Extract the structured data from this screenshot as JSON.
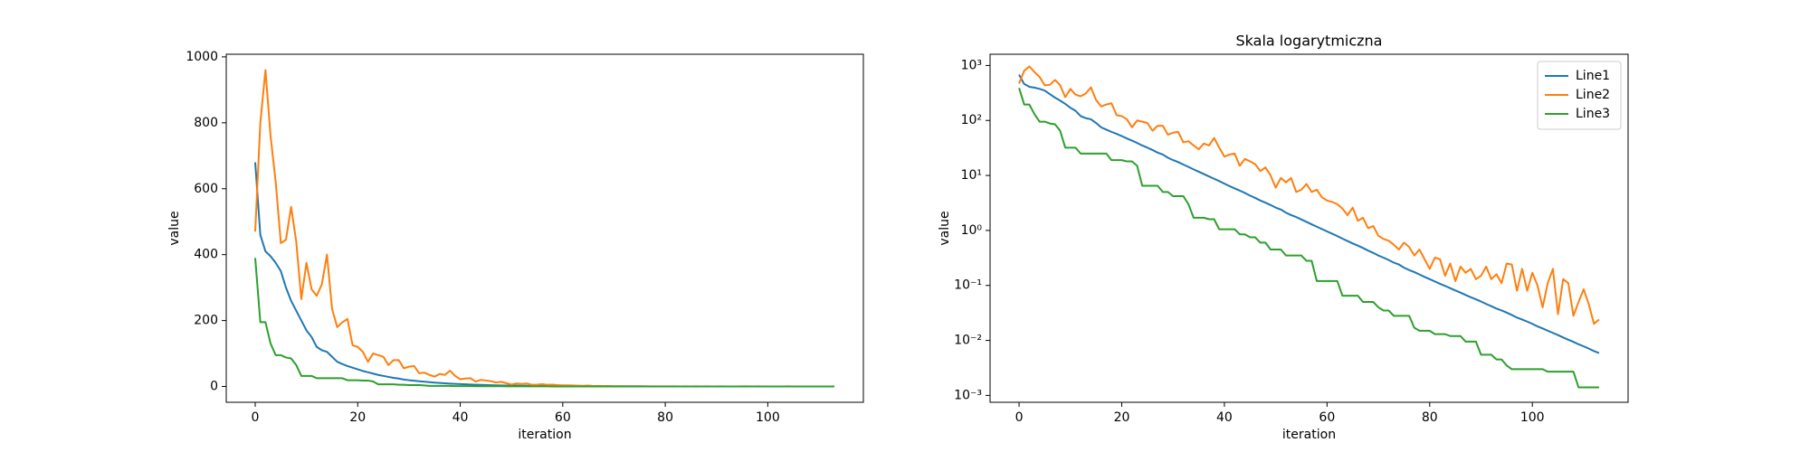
{
  "chart_data": [
    {
      "type": "line",
      "xlabel": "iteration",
      "ylabel": "value",
      "log_y": false,
      "legend": null,
      "xlim": [
        -5.65,
        118.65
      ],
      "xticks": [
        0,
        20,
        40,
        60,
        80,
        100
      ],
      "ylim": [
        -48,
        1008
      ],
      "yticks": [
        0,
        200,
        400,
        600,
        800,
        1000
      ],
      "x": [
        0,
        1,
        2,
        3,
        4,
        5,
        6,
        7,
        8,
        9,
        10,
        11,
        12,
        13,
        14,
        15,
        16,
        17,
        18,
        19,
        20,
        21,
        22,
        23,
        24,
        25,
        26,
        27,
        28,
        29,
        30,
        31,
        32,
        33,
        34,
        35,
        36,
        37,
        38,
        39,
        40,
        41,
        42,
        43,
        44,
        45,
        46,
        47,
        48,
        49,
        50,
        51,
        52,
        53,
        54,
        55,
        56,
        57,
        58,
        59,
        60,
        61,
        62,
        63,
        64,
        65,
        66,
        67,
        68,
        69,
        70,
        71,
        72,
        73,
        74,
        75,
        76,
        77,
        78,
        79,
        80,
        81,
        82,
        83,
        84,
        85,
        86,
        87,
        88,
        89,
        90,
        91,
        92,
        93,
        94,
        95,
        96,
        97,
        98,
        99,
        100,
        101,
        102,
        103,
        104,
        105,
        106,
        107,
        108,
        109,
        110,
        111,
        112,
        113
      ],
      "series": [
        {
          "name": "Line1",
          "color": "#1f77b4",
          "values": [
            680,
            460,
            410,
            395,
            375,
            350,
            300,
            260,
            230,
            200,
            170,
            150,
            120,
            110,
            105,
            90,
            75,
            68,
            62,
            57,
            52,
            47,
            43,
            39,
            35,
            32,
            29,
            26,
            24,
            21,
            19,
            17.5,
            15.8,
            14.3,
            12.9,
            11.7,
            10.6,
            9.6,
            8.7,
            7.9,
            7.1,
            6.4,
            5.8,
            5.3,
            4.8,
            4.3,
            3.9,
            3.5,
            3.2,
            2.9,
            2.6,
            2.4,
            2.1,
            1.9,
            1.75,
            1.58,
            1.43,
            1.29,
            1.17,
            1.06,
            0.96,
            0.87,
            0.79,
            0.71,
            0.64,
            0.58,
            0.53,
            0.48,
            0.43,
            0.39,
            0.35,
            0.32,
            0.29,
            0.26,
            0.24,
            0.21,
            0.19,
            0.175,
            0.158,
            0.143,
            0.13,
            0.118,
            0.107,
            0.098,
            0.089,
            0.081,
            0.074,
            0.067,
            0.061,
            0.056,
            0.051,
            0.046,
            0.042,
            0.038,
            0.035,
            0.032,
            0.029,
            0.026,
            0.024,
            0.022,
            0.02,
            0.018,
            0.0165,
            0.015,
            0.0137,
            0.0125,
            0.0113,
            0.0103,
            0.0094,
            0.0085,
            0.0078,
            0.0071,
            0.0064,
            0.0059
          ]
        },
        {
          "name": "Line2",
          "color": "#ff7f0e",
          "values": [
            470,
            800,
            960,
            760,
            620,
            435,
            445,
            545,
            440,
            265,
            375,
            295,
            275,
            310,
            400,
            235,
            180,
            195,
            205,
            125,
            120,
            105,
            75,
            100,
            95,
            90,
            65,
            80,
            80,
            55,
            60,
            62,
            40,
            42,
            35,
            30,
            38,
            35,
            48,
            32,
            22,
            24,
            25,
            15,
            20,
            18,
            16,
            12,
            14,
            10,
            6,
            9,
            7.5,
            9,
            5,
            5.5,
            7,
            5,
            5.5,
            4,
            3.5,
            3.3,
            3,
            2.5,
            1.9,
            2.6,
            1.5,
            1.7,
            1.1,
            1.2,
            0.8,
            0.7,
            0.65,
            0.55,
            0.45,
            0.6,
            0.5,
            0.35,
            0.45,
            0.3,
            0.2,
            0.32,
            0.3,
            0.15,
            0.25,
            0.12,
            0.22,
            0.17,
            0.2,
            0.13,
            0.15,
            0.22,
            0.13,
            0.16,
            0.11,
            0.25,
            0.24,
            0.08,
            0.2,
            0.08,
            0.17,
            0.1,
            0.04,
            0.11,
            0.2,
            0.03,
            0.13,
            0.11,
            0.028,
            0.05,
            0.085,
            0.045,
            0.02,
            0.024
          ]
        },
        {
          "name": "Line3",
          "color": "#2ca02c",
          "values": [
            390,
            195,
            195,
            130,
            95,
            95,
            88,
            85,
            65,
            32,
            32,
            32,
            25,
            25,
            25,
            25,
            25,
            25,
            19,
            19,
            19,
            18,
            18,
            15,
            6.5,
            6.5,
            6.5,
            6.5,
            5,
            5,
            4.2,
            4.2,
            4.2,
            3,
            1.7,
            1.7,
            1.7,
            1.6,
            1.6,
            1.05,
            1.05,
            1.05,
            1.05,
            0.85,
            0.85,
            0.75,
            0.75,
            0.6,
            0.6,
            0.45,
            0.45,
            0.45,
            0.35,
            0.35,
            0.35,
            0.35,
            0.28,
            0.28,
            0.12,
            0.12,
            0.12,
            0.12,
            0.12,
            0.065,
            0.065,
            0.065,
            0.065,
            0.05,
            0.05,
            0.05,
            0.04,
            0.035,
            0.035,
            0.028,
            0.028,
            0.028,
            0.028,
            0.017,
            0.015,
            0.015,
            0.015,
            0.013,
            0.013,
            0.013,
            0.012,
            0.012,
            0.012,
            0.0095,
            0.0095,
            0.0095,
            0.0055,
            0.0055,
            0.0055,
            0.0045,
            0.0045,
            0.0035,
            0.003,
            0.003,
            0.003,
            0.003,
            0.003,
            0.003,
            0.003,
            0.0027,
            0.0027,
            0.0027,
            0.0027,
            0.0027,
            0.0027,
            0.0014,
            0.0014,
            0.0014,
            0.0014,
            0.0014
          ]
        }
      ]
    },
    {
      "type": "line",
      "title": "Skala logarytmiczna",
      "xlabel": "iteration",
      "ylabel": "value",
      "log_y": true,
      "legend": "upper right",
      "xlim": [
        -5.65,
        118.65
      ],
      "xticks": [
        0,
        20,
        40,
        60,
        80,
        100
      ],
      "ylim": [
        0.00075,
        1600
      ],
      "yticks": [
        {
          "value": 0.001,
          "label": "10⁻³"
        },
        {
          "value": 0.01,
          "label": "10⁻²"
        },
        {
          "value": 0.1,
          "label": "10⁻¹"
        },
        {
          "value": 1,
          "label": "10⁰"
        },
        {
          "value": 10,
          "label": "10¹"
        },
        {
          "value": 100,
          "label": "10²"
        },
        {
          "value": 1000,
          "label": "10³"
        }
      ],
      "x": [
        0,
        1,
        2,
        3,
        4,
        5,
        6,
        7,
        8,
        9,
        10,
        11,
        12,
        13,
        14,
        15,
        16,
        17,
        18,
        19,
        20,
        21,
        22,
        23,
        24,
        25,
        26,
        27,
        28,
        29,
        30,
        31,
        32,
        33,
        34,
        35,
        36,
        37,
        38,
        39,
        40,
        41,
        42,
        43,
        44,
        45,
        46,
        47,
        48,
        49,
        50,
        51,
        52,
        53,
        54,
        55,
        56,
        57,
        58,
        59,
        60,
        61,
        62,
        63,
        64,
        65,
        66,
        67,
        68,
        69,
        70,
        71,
        72,
        73,
        74,
        75,
        76,
        77,
        78,
        79,
        80,
        81,
        82,
        83,
        84,
        85,
        86,
        87,
        88,
        89,
        90,
        91,
        92,
        93,
        94,
        95,
        96,
        97,
        98,
        99,
        100,
        101,
        102,
        103,
        104,
        105,
        106,
        107,
        108,
        109,
        110,
        111,
        112,
        113
      ],
      "series": [
        {
          "name": "Line1",
          "color": "#1f77b4",
          "values": [
            680,
            460,
            410,
            395,
            375,
            350,
            300,
            260,
            230,
            200,
            170,
            150,
            120,
            110,
            105,
            90,
            75,
            68,
            62,
            57,
            52,
            47,
            43,
            39,
            35,
            32,
            29,
            26,
            24,
            21,
            19,
            17.5,
            15.8,
            14.3,
            12.9,
            11.7,
            10.6,
            9.6,
            8.7,
            7.9,
            7.1,
            6.4,
            5.8,
            5.3,
            4.8,
            4.3,
            3.9,
            3.5,
            3.2,
            2.9,
            2.6,
            2.4,
            2.1,
            1.9,
            1.75,
            1.58,
            1.43,
            1.29,
            1.17,
            1.06,
            0.96,
            0.87,
            0.79,
            0.71,
            0.64,
            0.58,
            0.53,
            0.48,
            0.43,
            0.39,
            0.35,
            0.32,
            0.29,
            0.26,
            0.24,
            0.21,
            0.19,
            0.175,
            0.158,
            0.143,
            0.13,
            0.118,
            0.107,
            0.098,
            0.089,
            0.081,
            0.074,
            0.067,
            0.061,
            0.056,
            0.051,
            0.046,
            0.042,
            0.038,
            0.035,
            0.032,
            0.029,
            0.026,
            0.024,
            0.022,
            0.02,
            0.018,
            0.0165,
            0.015,
            0.0137,
            0.0125,
            0.0113,
            0.0103,
            0.0094,
            0.0085,
            0.0078,
            0.0071,
            0.0064,
            0.0059
          ]
        },
        {
          "name": "Line2",
          "color": "#ff7f0e",
          "values": [
            470,
            800,
            960,
            760,
            620,
            435,
            445,
            545,
            440,
            265,
            375,
            295,
            275,
            310,
            400,
            235,
            180,
            195,
            205,
            125,
            120,
            105,
            75,
            100,
            95,
            90,
            65,
            80,
            80,
            55,
            60,
            62,
            40,
            42,
            35,
            30,
            38,
            35,
            48,
            32,
            22,
            24,
            25,
            15,
            20,
            18,
            16,
            12,
            14,
            10,
            6,
            9,
            7.5,
            9,
            5,
            5.5,
            7,
            5,
            5.5,
            4,
            3.5,
            3.3,
            3,
            2.5,
            1.9,
            2.6,
            1.5,
            1.7,
            1.1,
            1.2,
            0.8,
            0.7,
            0.65,
            0.55,
            0.45,
            0.6,
            0.5,
            0.35,
            0.45,
            0.3,
            0.2,
            0.32,
            0.3,
            0.15,
            0.25,
            0.12,
            0.22,
            0.17,
            0.2,
            0.13,
            0.15,
            0.22,
            0.13,
            0.16,
            0.11,
            0.25,
            0.24,
            0.08,
            0.2,
            0.08,
            0.17,
            0.1,
            0.04,
            0.11,
            0.2,
            0.03,
            0.13,
            0.11,
            0.028,
            0.05,
            0.085,
            0.045,
            0.02,
            0.024
          ]
        },
        {
          "name": "Line3",
          "color": "#2ca02c",
          "values": [
            390,
            195,
            195,
            130,
            95,
            95,
            88,
            85,
            65,
            32,
            32,
            32,
            25,
            25,
            25,
            25,
            25,
            25,
            19,
            19,
            19,
            18,
            18,
            15,
            6.5,
            6.5,
            6.5,
            6.5,
            5,
            5,
            4.2,
            4.2,
            4.2,
            3,
            1.7,
            1.7,
            1.7,
            1.6,
            1.6,
            1.05,
            1.05,
            1.05,
            1.05,
            0.85,
            0.85,
            0.75,
            0.75,
            0.6,
            0.6,
            0.45,
            0.45,
            0.45,
            0.35,
            0.35,
            0.35,
            0.35,
            0.28,
            0.28,
            0.12,
            0.12,
            0.12,
            0.12,
            0.12,
            0.065,
            0.065,
            0.065,
            0.065,
            0.05,
            0.05,
            0.05,
            0.04,
            0.035,
            0.035,
            0.028,
            0.028,
            0.028,
            0.028,
            0.017,
            0.015,
            0.015,
            0.015,
            0.013,
            0.013,
            0.013,
            0.012,
            0.012,
            0.012,
            0.0095,
            0.0095,
            0.0095,
            0.0055,
            0.0055,
            0.0055,
            0.0045,
            0.0045,
            0.0035,
            0.003,
            0.003,
            0.003,
            0.003,
            0.003,
            0.003,
            0.003,
            0.0027,
            0.0027,
            0.0027,
            0.0027,
            0.0027,
            0.0027,
            0.0014,
            0.0014,
            0.0014,
            0.0014,
            0.0014
          ]
        }
      ]
    }
  ]
}
